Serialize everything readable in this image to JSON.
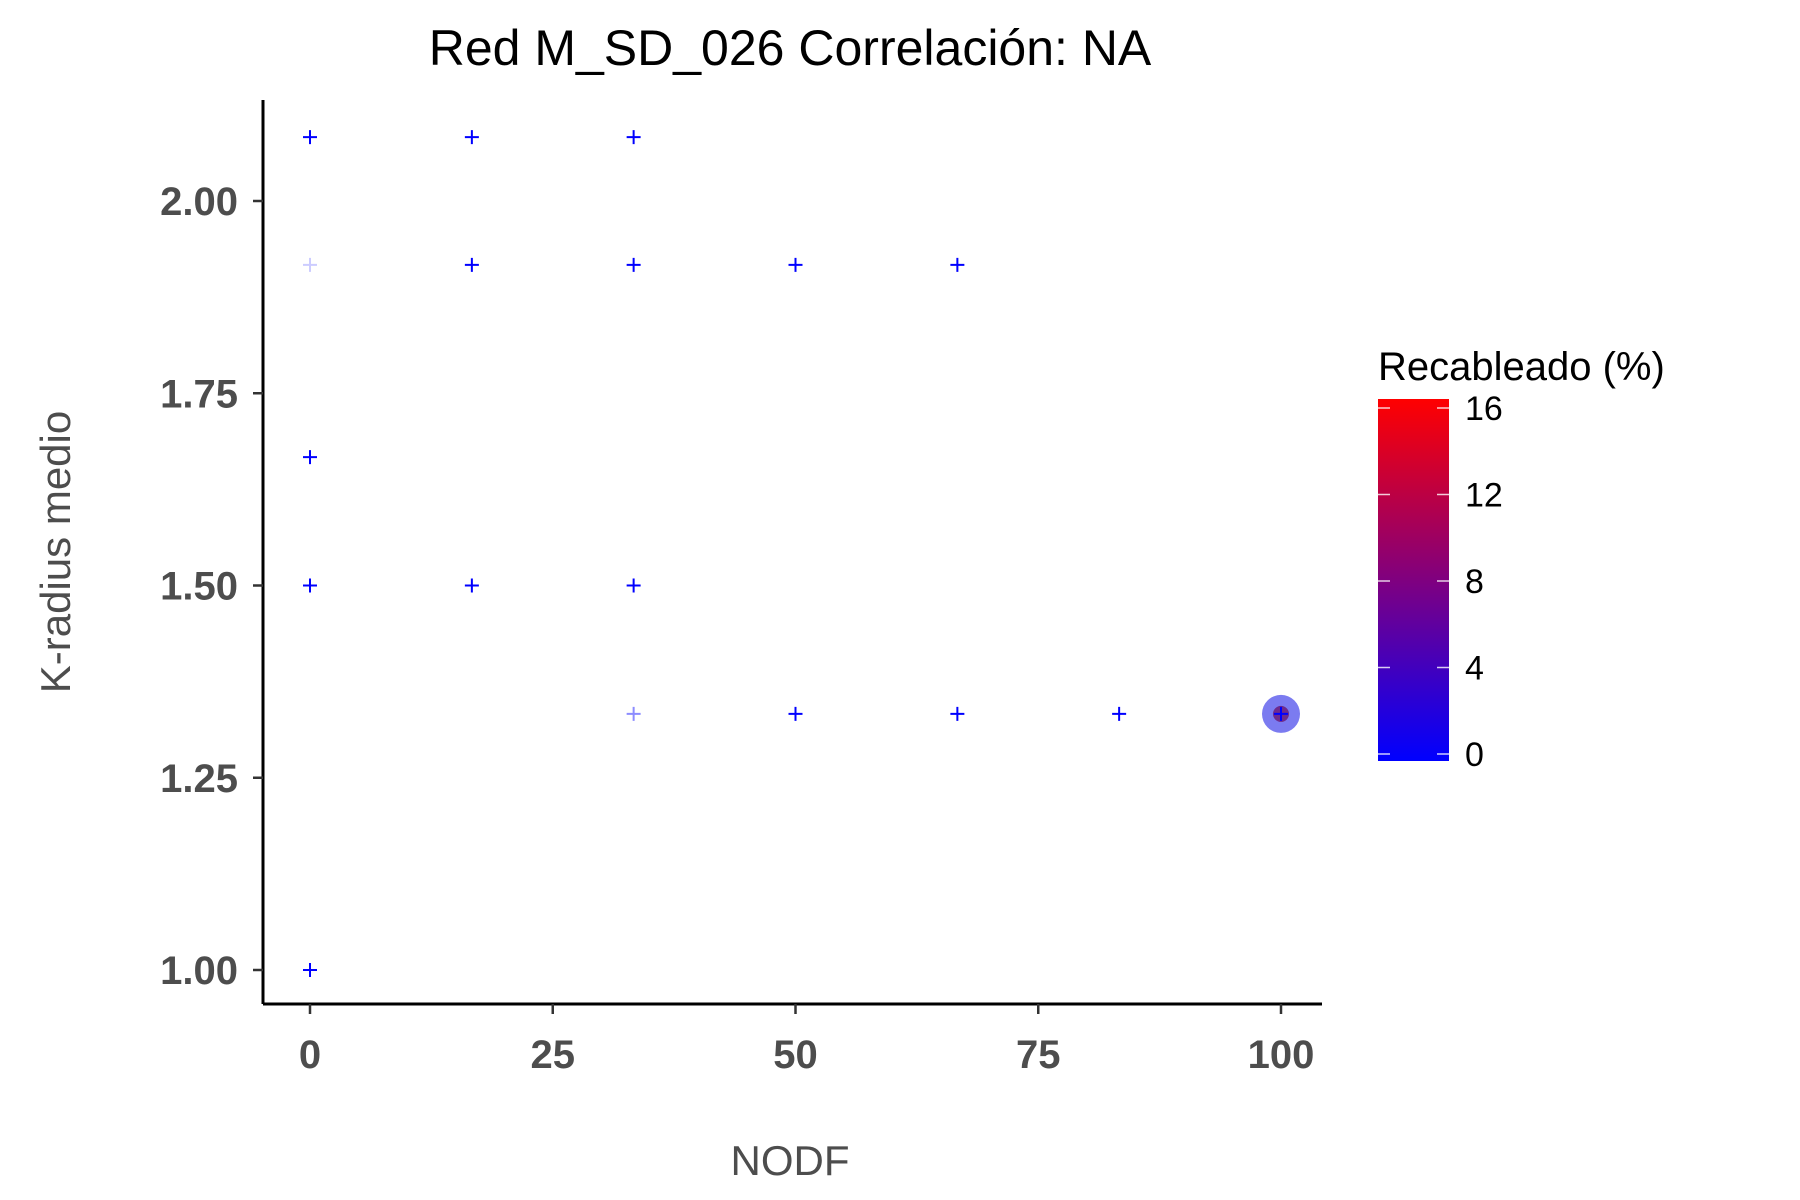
{
  "chart_data": {
    "type": "scatter",
    "title": "Red M_SD_026 Correlación: NA",
    "xlabel": "NODF",
    "ylabel": "K-radius medio",
    "xlim": [
      -4.5,
      104.5
    ],
    "ylim": [
      0.94,
      2.15
    ],
    "x_ticks": [
      0,
      25,
      50,
      75,
      100
    ],
    "x_tick_labels": [
      "0",
      "25",
      "50",
      "75",
      "100"
    ],
    "y_ticks": [
      1.0,
      1.25,
      1.5,
      1.75,
      2.0
    ],
    "y_tick_labels": [
      "1.00",
      "1.25",
      "1.50",
      "1.75",
      "2.00"
    ],
    "grid": false,
    "legend": {
      "title": "Recableado (%)",
      "placement": "right",
      "scale_min": 0,
      "scale_max": 16.5,
      "ticks": [
        0,
        4,
        8,
        12,
        16
      ],
      "tick_labels": [
        "0",
        "4",
        "8",
        "12",
        "16"
      ],
      "color_low": "#0000ff",
      "color_high": "#ff0000"
    },
    "points": [
      {
        "x": 0,
        "y": 2.083,
        "rewiring": 0,
        "alpha": 1.0
      },
      {
        "x": 16.67,
        "y": 2.083,
        "rewiring": 0,
        "alpha": 1.0
      },
      {
        "x": 33.33,
        "y": 2.083,
        "rewiring": 0,
        "alpha": 1.0
      },
      {
        "x": 0,
        "y": 1.917,
        "rewiring": 0,
        "alpha": 0.2
      },
      {
        "x": 16.67,
        "y": 1.917,
        "rewiring": 0,
        "alpha": 1.0
      },
      {
        "x": 33.33,
        "y": 1.917,
        "rewiring": 0,
        "alpha": 1.0
      },
      {
        "x": 50,
        "y": 1.917,
        "rewiring": 0,
        "alpha": 1.0
      },
      {
        "x": 66.67,
        "y": 1.917,
        "rewiring": 0,
        "alpha": 1.0
      },
      {
        "x": 0,
        "y": 1.667,
        "rewiring": 0,
        "alpha": 1.0
      },
      {
        "x": 0,
        "y": 1.5,
        "rewiring": 0,
        "alpha": 1.0
      },
      {
        "x": 16.67,
        "y": 1.5,
        "rewiring": 0,
        "alpha": 1.0
      },
      {
        "x": 33.33,
        "y": 1.5,
        "rewiring": 0,
        "alpha": 1.0
      },
      {
        "x": 33.33,
        "y": 1.333,
        "rewiring": 0,
        "alpha": 0.45
      },
      {
        "x": 50,
        "y": 1.333,
        "rewiring": 0,
        "alpha": 1.0
      },
      {
        "x": 66.67,
        "y": 1.333,
        "rewiring": 0,
        "alpha": 1.0
      },
      {
        "x": 83.33,
        "y": 1.333,
        "rewiring": 0,
        "alpha": 1.0
      },
      {
        "x": 100,
        "y": 1.333,
        "rewiring": 0,
        "alpha": 1.0
      },
      {
        "x": 0,
        "y": 1.0,
        "rewiring": 0,
        "alpha": 1.0
      }
    ],
    "highlight_points": [
      {
        "x": 100,
        "y": 1.333,
        "outer_color": "#7b7bf0",
        "inner_color": "#6e2a8c"
      }
    ]
  }
}
